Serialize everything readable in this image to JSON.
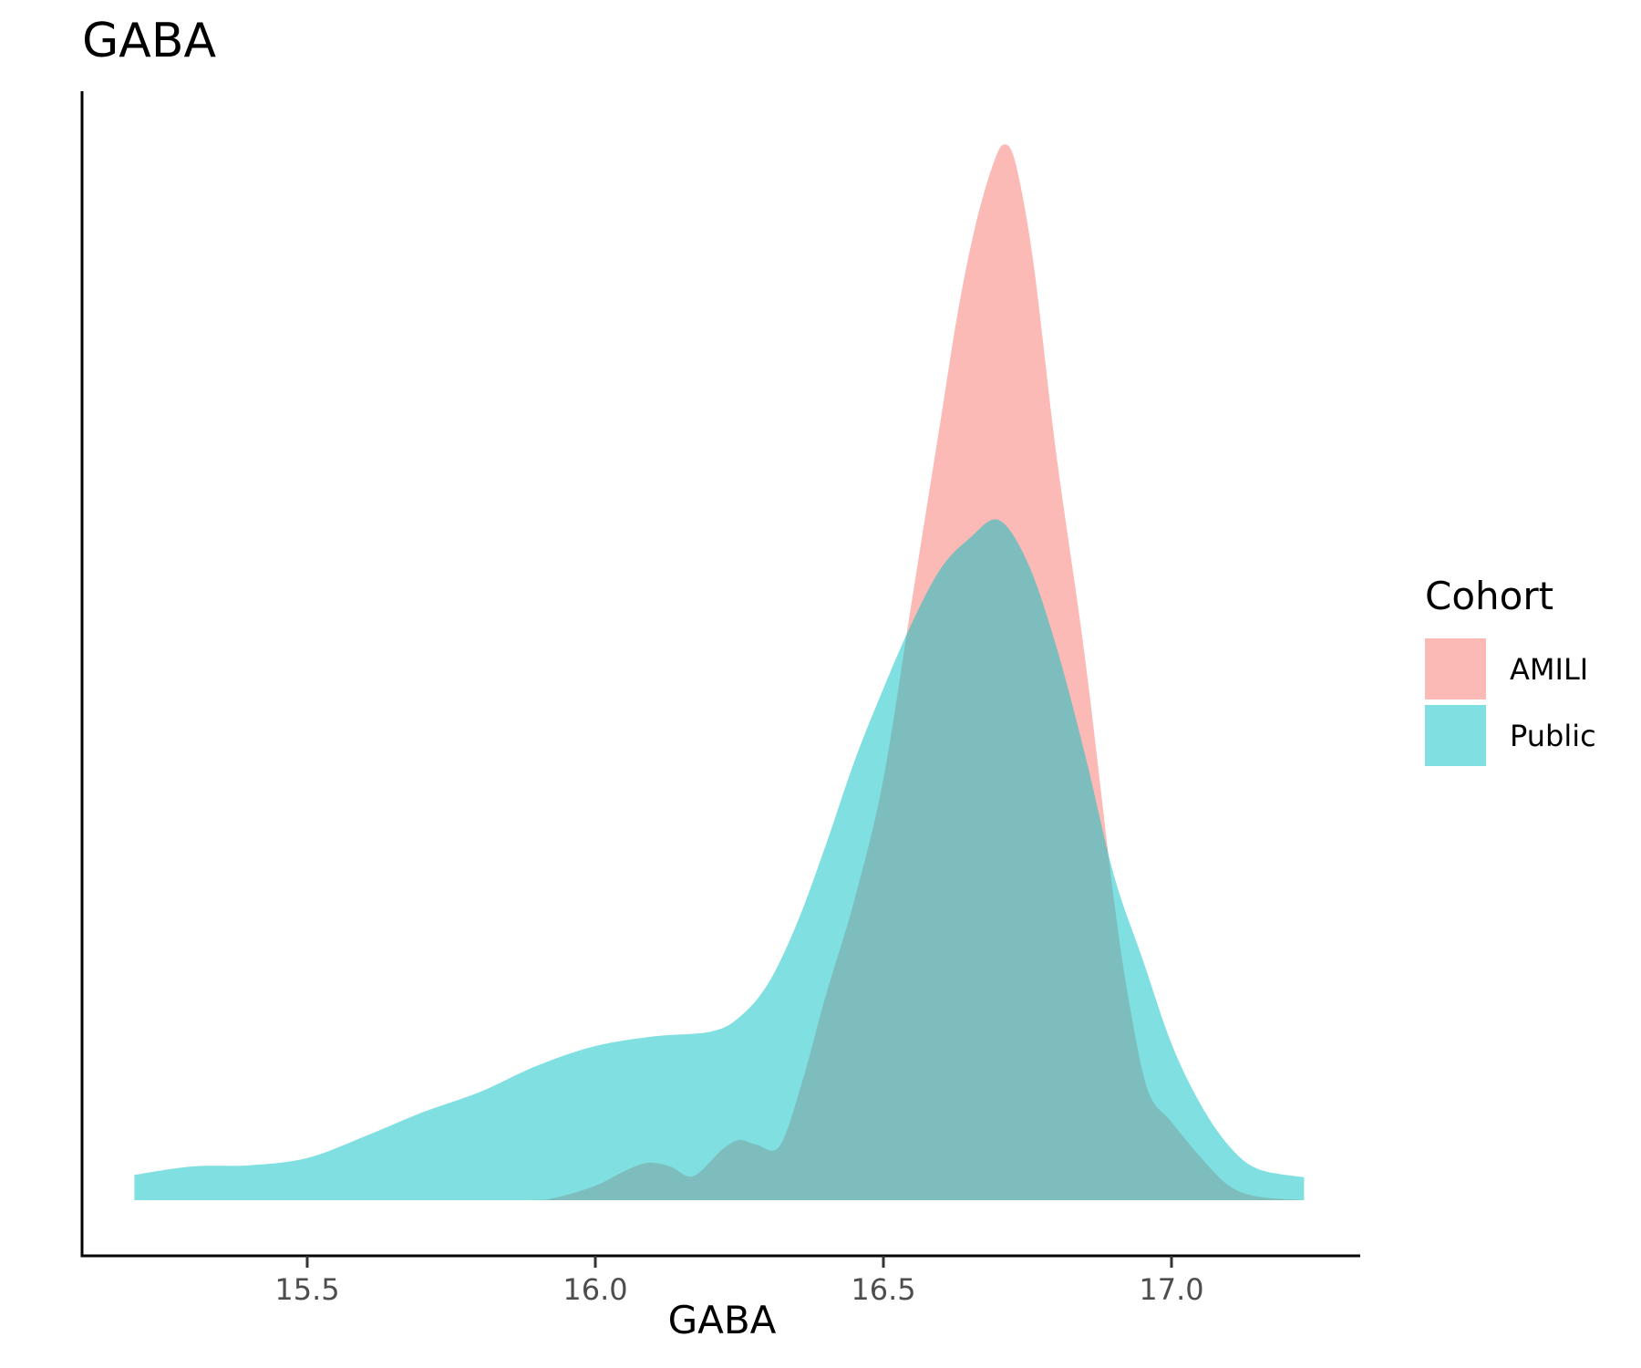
{
  "chart_data": {
    "type": "area",
    "title": "GABA",
    "xlabel": "GABA",
    "ylabel": "",
    "xlim": [
      15.2,
      17.23
    ],
    "x_ticks": [
      "15.5",
      "16.0",
      "16.5",
      "17.0"
    ],
    "legend": {
      "title": "Cohort",
      "position": "right"
    },
    "grid": false,
    "series": [
      {
        "name": "AMILI",
        "color": "#F8766D",
        "opacity": 0.5,
        "x": [
          15.2,
          15.7,
          15.88,
          15.93,
          16.0,
          16.05,
          16.09,
          16.13,
          16.17,
          16.22,
          16.25,
          16.28,
          16.32,
          16.36,
          16.4,
          16.45,
          16.5,
          16.55,
          16.6,
          16.63,
          16.66,
          16.69,
          16.71,
          16.73,
          16.76,
          16.8,
          16.85,
          16.9,
          16.93,
          16.96,
          17.0,
          17.05,
          17.1,
          17.15,
          17.23
        ],
        "y": [
          0,
          0,
          0,
          0.2,
          1.2,
          2.4,
          3.1,
          2.8,
          2.0,
          4.2,
          5.0,
          4.6,
          4.5,
          10.0,
          17.0,
          25.0,
          35.0,
          50.0,
          65.0,
          74.0,
          81.0,
          86.0,
          87.7,
          86.0,
          78.0,
          62.0,
          45.0,
          25.0,
          15.5,
          9.0,
          6.5,
          3.6,
          1.2,
          0.3,
          0
        ]
      },
      {
        "name": "Public",
        "color": "#00BFC4",
        "opacity": 0.5,
        "x": [
          15.2,
          15.3,
          15.4,
          15.5,
          15.6,
          15.7,
          15.8,
          15.9,
          16.0,
          16.1,
          16.2,
          16.25,
          16.3,
          16.35,
          16.4,
          16.45,
          16.5,
          16.55,
          16.6,
          16.65,
          16.7,
          16.75,
          16.8,
          16.85,
          16.9,
          16.95,
          17.0,
          17.05,
          17.1,
          17.15,
          17.23
        ],
        "y": [
          2.1,
          2.8,
          2.9,
          3.5,
          5.3,
          7.3,
          9.0,
          11.2,
          12.8,
          13.6,
          14.0,
          15.2,
          18.0,
          23.0,
          29.5,
          36.5,
          42.5,
          48.0,
          52.5,
          55.0,
          56.5,
          53.0,
          46.0,
          37.0,
          27.0,
          20.0,
          13.0,
          8.0,
          4.5,
          2.6,
          1.9
        ]
      }
    ]
  }
}
